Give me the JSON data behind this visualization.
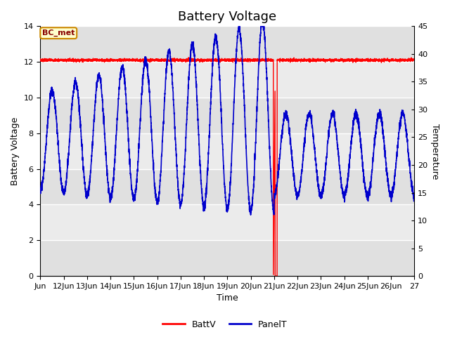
{
  "title": "Battery Voltage",
  "xlabel": "Time",
  "ylabel_left": "Battery Voltage",
  "ylabel_right": "Temperature",
  "ylim_left": [
    0,
    14
  ],
  "ylim_right": [
    0,
    45
  ],
  "yticks_left": [
    0,
    2,
    4,
    6,
    8,
    10,
    12,
    14
  ],
  "yticks_right": [
    0,
    5,
    10,
    15,
    20,
    25,
    30,
    35,
    40,
    45
  ],
  "xlim": [
    11,
    27
  ],
  "xtick_positions": [
    11,
    12,
    13,
    14,
    15,
    16,
    17,
    18,
    19,
    20,
    21,
    22,
    23,
    24,
    25,
    26,
    27
  ],
  "xtick_labels": [
    "Jun",
    "12Jun",
    "13Jun",
    "14Jun",
    "15Jun",
    "16Jun",
    "17Jun",
    "18Jun",
    "19Jun",
    "20Jun",
    "21Jun",
    "22Jun",
    "23Jun",
    "24Jun",
    "25Jun",
    "26Jun",
    "27"
  ],
  "batt_color": "#FF0000",
  "panel_color": "#0000CC",
  "bg_color": "#EBEBEB",
  "band_colors": [
    "#E0E0E0",
    "#EBEBEB"
  ],
  "grid_color": "#FFFFFF",
  "annotation_label": "BC_met",
  "annotation_bg": "#FFFFCC",
  "annotation_border": "#CC8800",
  "annotation_text_color": "#880000",
  "legend_labels": [
    "BattV",
    "PanelT"
  ],
  "title_fontsize": 13,
  "axis_fontsize": 9,
  "tick_fontsize": 8,
  "figsize": [
    6.4,
    4.8
  ],
  "dpi": 100
}
